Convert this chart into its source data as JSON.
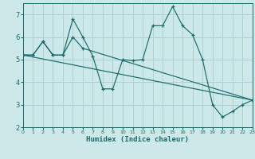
{
  "xlabel": "Humidex (Indice chaleur)",
  "xlim": [
    0,
    23
  ],
  "ylim": [
    2,
    7.5
  ],
  "yticks": [
    2,
    3,
    4,
    5,
    6,
    7
  ],
  "xticks": [
    0,
    1,
    2,
    3,
    4,
    5,
    6,
    7,
    8,
    9,
    10,
    11,
    12,
    13,
    14,
    15,
    16,
    17,
    18,
    19,
    20,
    21,
    22,
    23
  ],
  "bg_color": "#cce8e8",
  "grid_color": "#aacccc",
  "line_color": "#1a6b6b",
  "lines": [
    {
      "x": [
        0,
        1,
        2,
        3,
        4,
        5,
        6,
        7,
        8,
        9,
        10,
        11,
        12,
        13,
        14,
        15,
        16,
        17,
        18,
        19,
        20,
        21,
        22,
        23
      ],
      "y": [
        5.2,
        5.2,
        5.8,
        5.2,
        5.2,
        6.8,
        6.0,
        5.15,
        3.7,
        3.7,
        5.0,
        4.95,
        5.0,
        6.5,
        6.5,
        7.35,
        6.5,
        6.1,
        5.0,
        3.0,
        2.45,
        2.7,
        3.0,
        3.2
      ]
    },
    {
      "x": [
        0,
        1,
        2,
        3,
        4,
        5,
        6,
        23
      ],
      "y": [
        5.2,
        5.2,
        5.8,
        5.2,
        5.2,
        6.0,
        5.5,
        3.2
      ]
    },
    {
      "x": [
        0,
        23
      ],
      "y": [
        5.2,
        3.2
      ]
    }
  ]
}
